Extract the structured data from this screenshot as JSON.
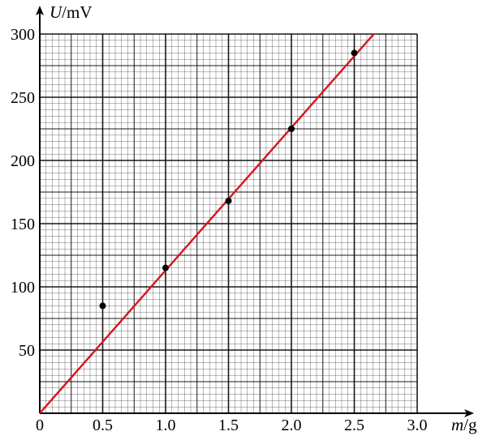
{
  "chart_data": {
    "type": "scatter",
    "xlabel_var": "m",
    "xlabel_unit": "/g",
    "ylabel_var": "U",
    "ylabel_unit": "/mV",
    "origin_label": "0",
    "xlim": [
      0,
      3.0
    ],
    "ylim": [
      0,
      300
    ],
    "x_ticks": [
      "0.5",
      "1.0",
      "1.5",
      "2.0",
      "2.5",
      "3.0"
    ],
    "y_ticks": [
      "50",
      "100",
      "150",
      "200",
      "250",
      "300"
    ],
    "x_tick_values": [
      0.5,
      1.0,
      1.5,
      2.0,
      2.5,
      3.0
    ],
    "y_tick_values": [
      50,
      100,
      150,
      200,
      250,
      300
    ],
    "grid": true,
    "points": [
      {
        "x": 0.5,
        "y": 85
      },
      {
        "x": 1.0,
        "y": 115
      },
      {
        "x": 1.5,
        "y": 168
      },
      {
        "x": 2.0,
        "y": 225
      },
      {
        "x": 2.5,
        "y": 285
      }
    ],
    "fit_line": {
      "slope": 113,
      "intercept": 0
    },
    "colors": {
      "fit_line": "#d7141e",
      "points": "#000000",
      "grid": "#000000"
    }
  }
}
